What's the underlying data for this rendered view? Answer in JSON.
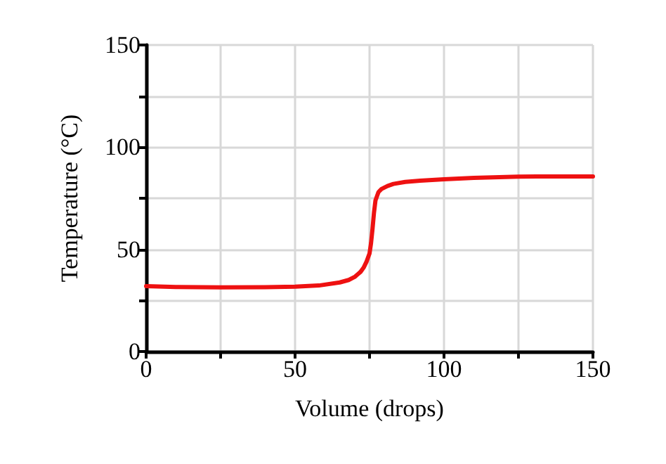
{
  "chart_data": {
    "type": "line",
    "xlabel": "Volume (drops)",
    "ylabel": "Temperature (°C)",
    "xlim": [
      0,
      150
    ],
    "ylim": [
      0,
      150
    ],
    "xticks": [
      0,
      {
        "value": 25,
        "label": null
      },
      50,
      {
        "value": 75,
        "label": null
      },
      100,
      {
        "value": 125,
        "label": null
      },
      150
    ],
    "yticks": [
      0,
      {
        "value": 25,
        "label": null
      },
      50,
      {
        "value": 75,
        "label": null
      },
      100,
      {
        "value": 125,
        "label": null
      },
      150
    ],
    "grid": true,
    "marker": "none",
    "line_style": "solid",
    "series": [
      {
        "color": "#ee1111",
        "x": [
          0,
          10,
          25,
          40,
          50,
          58,
          65,
          68,
          70,
          72,
          73,
          74,
          75,
          75.5,
          76,
          76.5,
          77,
          78,
          79,
          81,
          83,
          87,
          92,
          100,
          110,
          125,
          140,
          150
        ],
        "values": [
          32,
          31.6,
          31.4,
          31.5,
          31.7,
          32.3,
          33.8,
          35,
          36.5,
          39,
          41,
          44,
          48,
          53,
          60,
          68,
          74,
          78,
          79.5,
          81,
          82,
          83,
          83.6,
          84.3,
          85,
          85.6,
          85.7,
          85.7
        ]
      }
    ]
  }
}
